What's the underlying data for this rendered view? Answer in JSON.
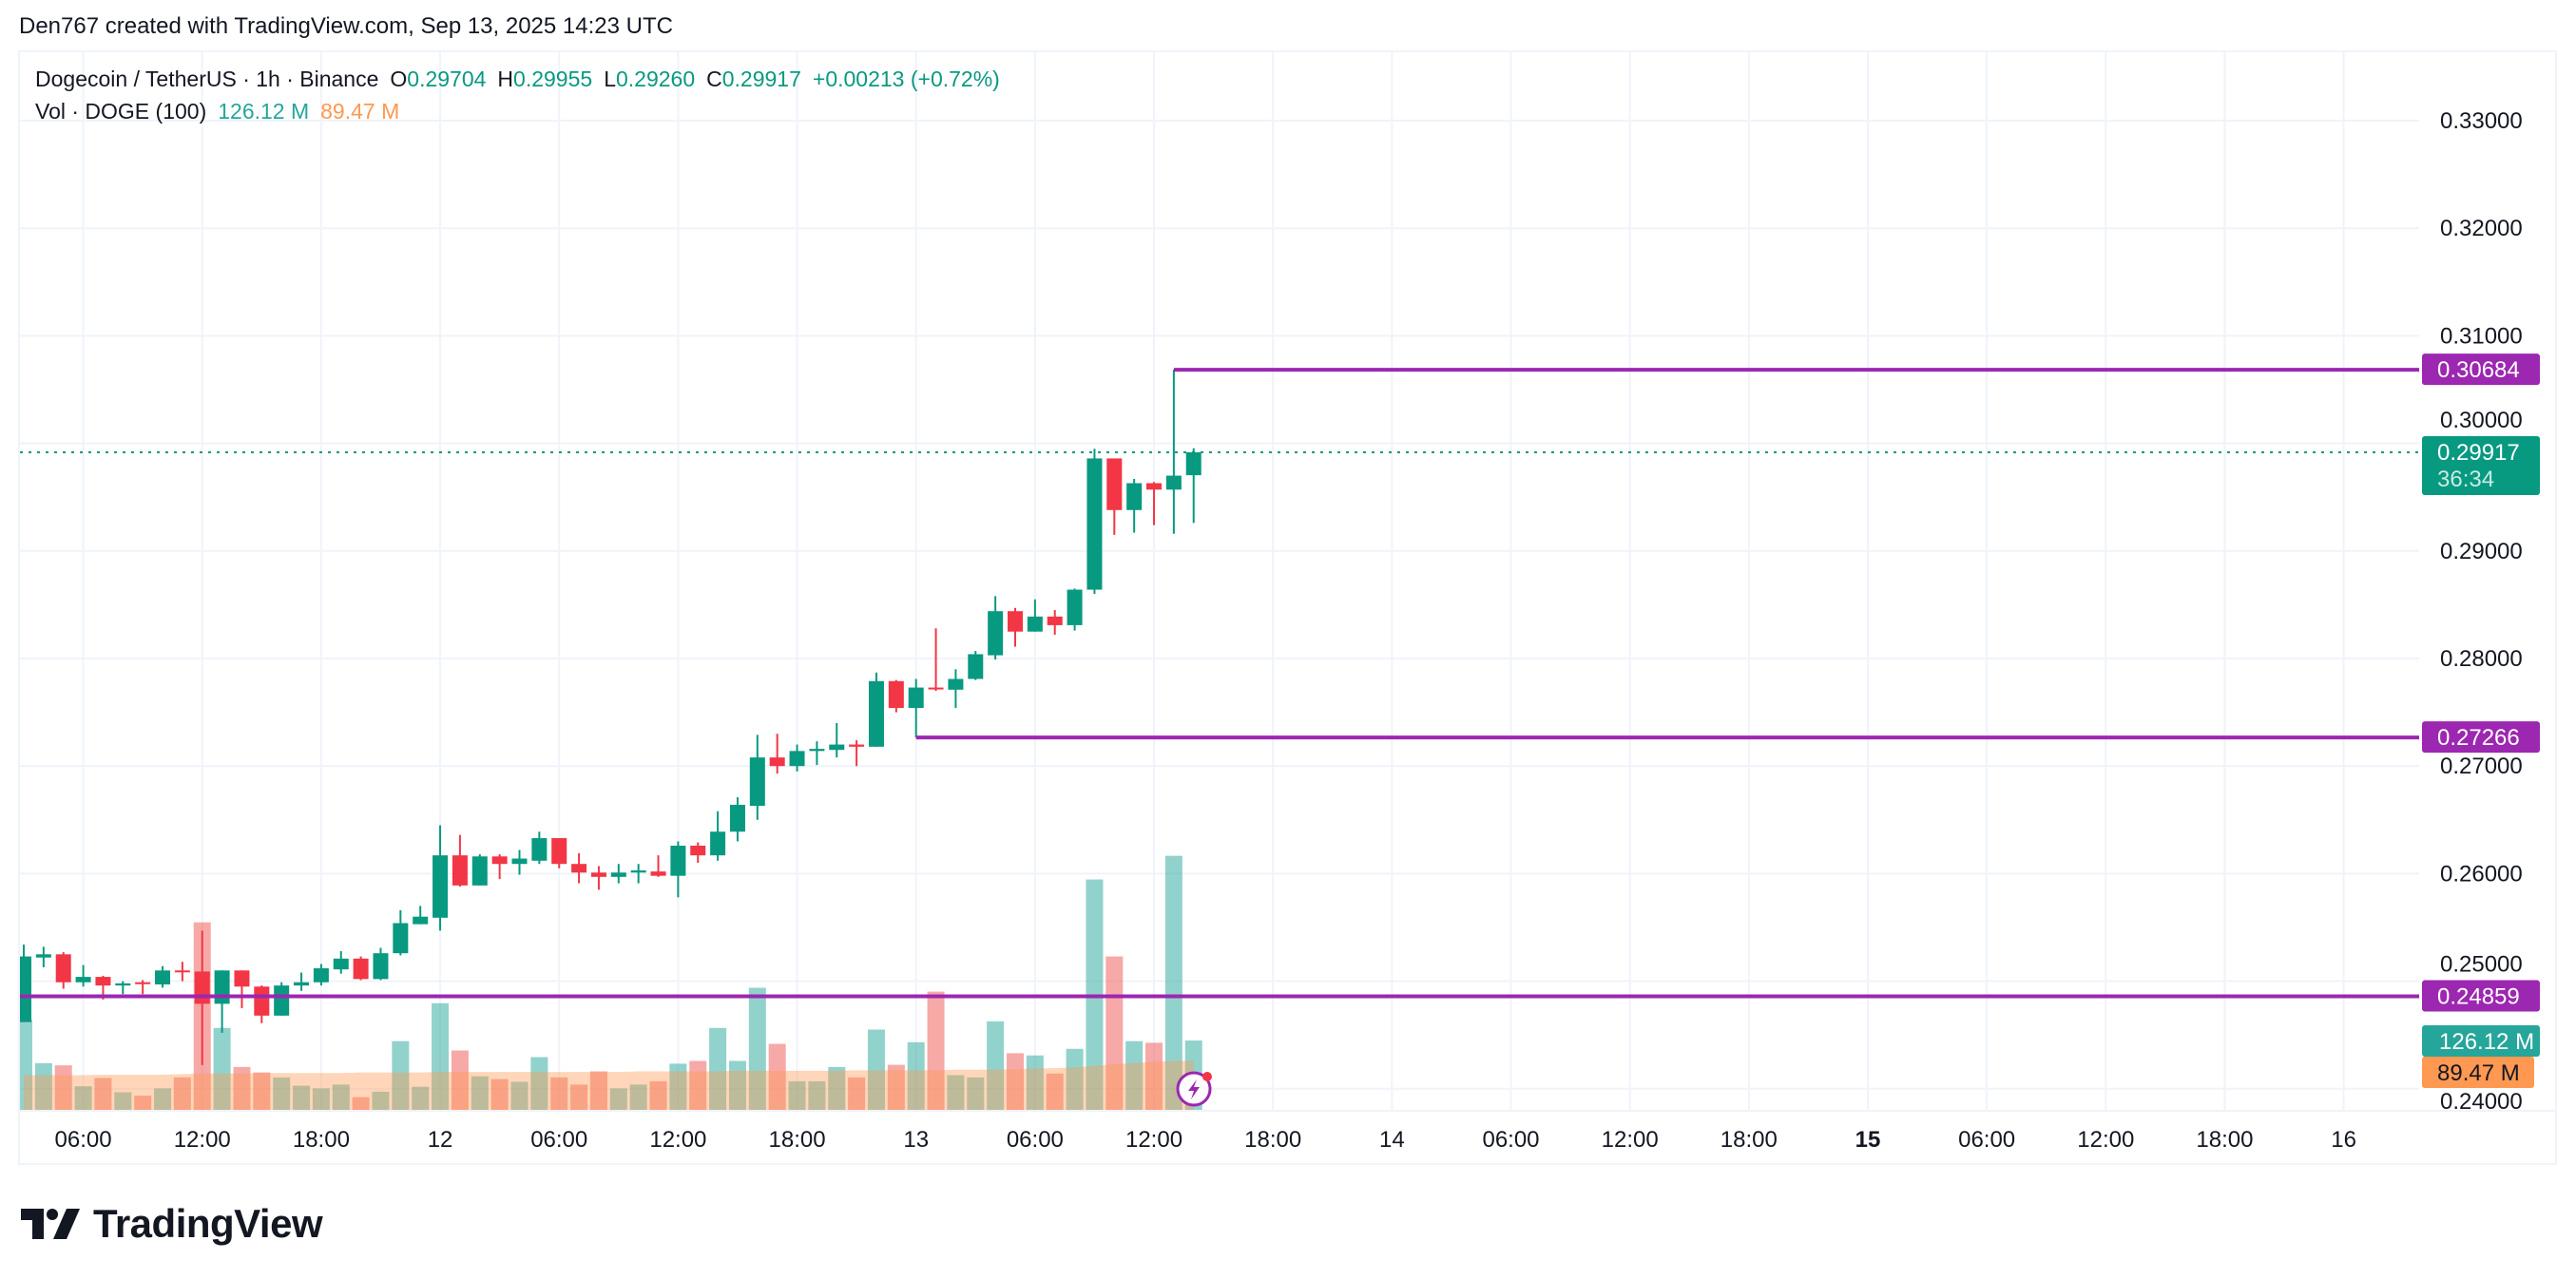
{
  "credit": "Den767 created with TradingView.com, Sep 13, 2025 14:23 UTC",
  "legend": {
    "symbol": "Dogecoin / TetherUS · 1h · Binance",
    "o_label": "O",
    "o_value": "0.29704",
    "h_label": "H",
    "h_value": "0.29955",
    "l_label": "L",
    "l_value": "0.29260",
    "c_label": "C",
    "c_value": "0.29917",
    "change": "+0.00213 (+0.72%)",
    "vol_label": "Vol · DOGE (100)",
    "vol_value": "126.12 M",
    "vol_ma_value": "89.47 M"
  },
  "price_tags": {
    "last_price": "0.29917",
    "countdown": "36:34",
    "volume": "126.12 M",
    "volume_ma": "89.47 M"
  },
  "logo": {
    "text": "TradingView"
  },
  "colors": {
    "up": "#089981",
    "down": "#f23645",
    "vol_up": "#26a69a",
    "vol_down": "#ef5350",
    "vol_ma": "#ff9850",
    "levels": "#9c27b0",
    "grid": "#f0f3fa"
  },
  "chart_data": {
    "type": "candlestick",
    "interval": "1h",
    "start": "2025-09-11 03:00",
    "ylim": [
      0.2387,
      0.3363
    ],
    "y_ticks": [
      "0.33000",
      "0.32000",
      "0.31000",
      "0.30000",
      "0.29000",
      "0.28000",
      "0.27000",
      "0.26000",
      "0.25000",
      "0.24000"
    ],
    "x_ticks": [
      {
        "label": "06:00",
        "time": "2025-09-11 06:00"
      },
      {
        "label": "12:00",
        "time": "2025-09-11 12:00"
      },
      {
        "label": "18:00",
        "time": "2025-09-11 18:00"
      },
      {
        "label": "12",
        "time": "2025-09-12 00:00",
        "bold": false
      },
      {
        "label": "06:00",
        "time": "2025-09-12 06:00"
      },
      {
        "label": "12:00",
        "time": "2025-09-12 12:00"
      },
      {
        "label": "18:00",
        "time": "2025-09-12 18:00"
      },
      {
        "label": "13",
        "time": "2025-09-13 00:00",
        "bold": false
      },
      {
        "label": "06:00",
        "time": "2025-09-13 06:00"
      },
      {
        "label": "12:00",
        "time": "2025-09-13 12:00"
      },
      {
        "label": "18:00",
        "time": "2025-09-13 18:00"
      },
      {
        "label": "14",
        "time": "2025-09-14 00:00",
        "bold": false
      },
      {
        "label": "06:00",
        "time": "2025-09-14 06:00"
      },
      {
        "label": "12:00",
        "time": "2025-09-14 12:00"
      },
      {
        "label": "18:00",
        "time": "2025-09-14 18:00"
      },
      {
        "label": "15",
        "time": "2025-09-15 00:00",
        "bold": true
      },
      {
        "label": "06:00",
        "time": "2025-09-15 06:00"
      },
      {
        "label": "12:00",
        "time": "2025-09-15 12:00"
      },
      {
        "label": "18:00",
        "time": "2025-09-15 18:00"
      },
      {
        "label": "16",
        "time": "2025-09-16 00:00",
        "bold": false
      }
    ],
    "ohlc": [
      [
        0.2462,
        0.2534,
        0.2462,
        0.2523
      ],
      [
        0.2522,
        0.2532,
        0.2513,
        0.2525
      ],
      [
        0.2525,
        0.2527,
        0.2493,
        0.2499
      ],
      [
        0.2499,
        0.2515,
        0.2495,
        0.2504
      ],
      [
        0.2504,
        0.2505,
        0.2483,
        0.2496
      ],
      [
        0.2496,
        0.25,
        0.2488,
        0.2498
      ],
      [
        0.2499,
        0.2501,
        0.2488,
        0.2498
      ],
      [
        0.2497,
        0.2514,
        0.2494,
        0.251
      ],
      [
        0.251,
        0.2518,
        0.25,
        0.2509
      ],
      [
        0.2509,
        0.2547,
        0.2422,
        0.2479
      ],
      [
        0.2479,
        0.251,
        0.2452,
        0.251
      ],
      [
        0.251,
        0.251,
        0.2475,
        0.2495
      ],
      [
        0.2495,
        0.2496,
        0.2461,
        0.2468
      ],
      [
        0.2468,
        0.2499,
        0.2468,
        0.2496
      ],
      [
        0.2496,
        0.2508,
        0.2491,
        0.2499
      ],
      [
        0.2499,
        0.2516,
        0.2496,
        0.2512
      ],
      [
        0.2511,
        0.2528,
        0.2507,
        0.2521
      ],
      [
        0.2521,
        0.2523,
        0.2501,
        0.2502
      ],
      [
        0.2502,
        0.2531,
        0.2501,
        0.2526
      ],
      [
        0.2526,
        0.2566,
        0.2524,
        0.2554
      ],
      [
        0.2553,
        0.257,
        0.2553,
        0.256
      ],
      [
        0.2559,
        0.2645,
        0.2547,
        0.2617
      ],
      [
        0.2617,
        0.2636,
        0.2588,
        0.2589
      ],
      [
        0.2589,
        0.2618,
        0.2589,
        0.2616
      ],
      [
        0.2616,
        0.2618,
        0.2595,
        0.2609
      ],
      [
        0.2609,
        0.2622,
        0.2599,
        0.2614
      ],
      [
        0.2612,
        0.2639,
        0.2609,
        0.2633
      ],
      [
        0.2633,
        0.2633,
        0.2605,
        0.2609
      ],
      [
        0.2609,
        0.2619,
        0.2591,
        0.2601
      ],
      [
        0.2601,
        0.2607,
        0.2585,
        0.2597
      ],
      [
        0.2597,
        0.2609,
        0.2591,
        0.2601
      ],
      [
        0.2601,
        0.2609,
        0.2591,
        0.2603
      ],
      [
        0.2602,
        0.2617,
        0.2597,
        0.2598
      ],
      [
        0.2598,
        0.263,
        0.2578,
        0.2626
      ],
      [
        0.2626,
        0.2629,
        0.261,
        0.2617
      ],
      [
        0.2617,
        0.2658,
        0.2612,
        0.2639
      ],
      [
        0.2639,
        0.2671,
        0.263,
        0.2664
      ],
      [
        0.2663,
        0.2729,
        0.265,
        0.2708
      ],
      [
        0.2708,
        0.273,
        0.2693,
        0.27
      ],
      [
        0.27,
        0.272,
        0.2695,
        0.2714
      ],
      [
        0.2714,
        0.2723,
        0.2701,
        0.2716
      ],
      [
        0.2715,
        0.274,
        0.2708,
        0.272
      ],
      [
        0.272,
        0.2724,
        0.27,
        0.2718
      ],
      [
        0.2718,
        0.2787,
        0.2718,
        0.2779
      ],
      [
        0.2779,
        0.278,
        0.275,
        0.2754
      ],
      [
        0.2754,
        0.2781,
        0.27266,
        0.2773
      ],
      [
        0.2773,
        0.2828,
        0.277,
        0.2772
      ],
      [
        0.2771,
        0.279,
        0.2754,
        0.2781
      ],
      [
        0.2781,
        0.2807,
        0.278,
        0.2804
      ],
      [
        0.2803,
        0.2858,
        0.2799,
        0.2844
      ],
      [
        0.2844,
        0.2847,
        0.2811,
        0.2825
      ],
      [
        0.2825,
        0.2855,
        0.2825,
        0.2839
      ],
      [
        0.2839,
        0.2845,
        0.2822,
        0.2831
      ],
      [
        0.2831,
        0.2865,
        0.2826,
        0.2864
      ],
      [
        0.2864,
        0.2995,
        0.286,
        0.2986
      ],
      [
        0.2986,
        0.2986,
        0.2915,
        0.2938
      ],
      [
        0.2938,
        0.2967,
        0.2917,
        0.2963
      ],
      [
        0.2963,
        0.2964,
        0.2924,
        0.2957
      ],
      [
        0.2957,
        0.30684,
        0.2916,
        0.297
      ],
      [
        0.29704,
        0.29955,
        0.2926,
        0.29917
      ]
    ],
    "volume_millions": [
      164,
      85,
      81,
      43,
      58,
      32,
      26,
      39,
      59,
      341,
      149,
      78,
      68,
      59,
      44,
      39,
      46,
      23,
      33,
      125,
      42,
      194,
      108,
      61,
      56,
      51,
      96,
      59,
      46,
      70,
      39,
      46,
      52,
      84,
      89,
      149,
      89,
      222,
      120,
      52,
      52,
      78,
      59,
      146,
      82,
      123,
      215,
      63,
      59,
      161,
      103,
      99,
      66,
      111,
      419,
      279,
      125,
      122,
      462,
      126.12
    ],
    "volume_ma_millions": [
      63,
      63,
      63,
      63,
      64,
      64,
      64,
      64,
      65,
      66,
      66,
      66,
      67,
      67,
      67,
      67,
      67,
      68,
      68,
      68,
      68,
      69,
      69,
      69,
      69,
      69,
      69,
      69,
      69,
      69,
      69,
      70,
      70,
      70,
      70,
      70,
      71,
      71,
      71,
      71,
      71,
      71,
      72,
      72,
      72,
      72,
      72,
      73,
      73,
      73,
      74,
      75,
      76,
      77,
      80,
      83,
      85,
      87,
      89,
      89.47
    ],
    "levels": [
      {
        "price": 0.30684,
        "label": "0.30684",
        "from_bar": 59
      },
      {
        "price": 0.27266,
        "label": "0.27266",
        "from_bar": 46
      },
      {
        "price": 0.24859,
        "label": "0.24859",
        "from_bar": 1
      }
    ],
    "last_price": 0.29917
  }
}
